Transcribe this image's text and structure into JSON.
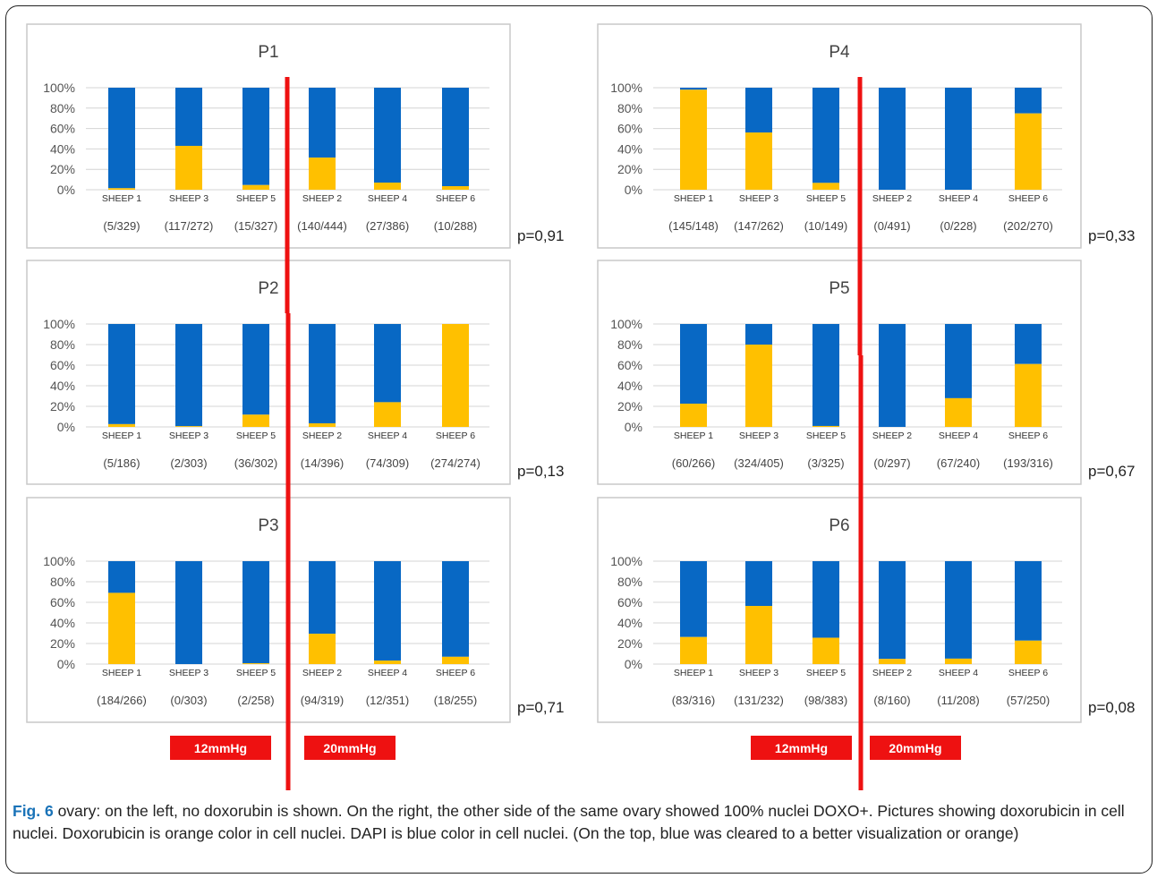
{
  "caption": {
    "label": "Fig. 6",
    "text": " ovary: on the left, no doxorubin is shown. On the right, the other side of the same ovary showed 100% nuclei DOXO+. Pictures showing doxorubicin in cell nuclei. Doxorubicin is orange color in cell nuclei. DAPI is blue color in cell nuclei. (On the top, blue was cleared to a better visualization or orange)"
  },
  "colors": {
    "dapi": "#0868c4",
    "doxo": "#ffc000",
    "divider": "#ee1111",
    "label_box": "#ee1111"
  },
  "pressure_labels": {
    "left": "12mmHg",
    "right": "20mmHg"
  },
  "y_ticks": [
    "0%",
    "20%",
    "40%",
    "60%",
    "80%",
    "100%"
  ],
  "chart_data": [
    {
      "type": "bar",
      "title": "P1",
      "categories": [
        "SHEEP 1",
        "SHEEP 3",
        "SHEEP 5",
        "SHEEP 2",
        "SHEEP 4",
        "SHEEP 6"
      ],
      "ylim": [
        0,
        100
      ],
      "series": [
        {
          "values": [
            1.5,
            43,
            4.6,
            31.5,
            7,
            3.5
          ]
        },
        {
          "values": [
            98.5,
            57,
            95.4,
            68.5,
            93,
            96.5
          ]
        }
      ],
      "counts": [
        "(5/329)",
        "(117/272)",
        "(15/327)",
        "(140/444)",
        "(27/386)",
        "(10/288)"
      ],
      "p_value": "p=0,91"
    },
    {
      "type": "bar",
      "title": "P2",
      "categories": [
        "SHEEP 1",
        "SHEEP 3",
        "SHEEP 5",
        "SHEEP 2",
        "SHEEP 4",
        "SHEEP 6"
      ],
      "ylim": [
        0,
        100
      ],
      "series": [
        {
          "values": [
            2.7,
            0.7,
            11.9,
            3.5,
            24,
            100
          ]
        },
        {
          "values": [
            97.3,
            99.3,
            88.1,
            96.5,
            76,
            0
          ]
        }
      ],
      "counts": [
        "(5/186)",
        "(2/303)",
        "(36/302)",
        "(14/396)",
        "(74/309)",
        "(274/274)"
      ],
      "p_value": "p=0,13"
    },
    {
      "type": "bar",
      "title": "P3",
      "categories": [
        "SHEEP 1",
        "SHEEP 3",
        "SHEEP 5",
        "SHEEP 2",
        "SHEEP 4",
        "SHEEP 6"
      ],
      "ylim": [
        0,
        100
      ],
      "series": [
        {
          "values": [
            69.2,
            0,
            0.8,
            29.5,
            3.4,
            7.1
          ]
        },
        {
          "values": [
            30.8,
            100,
            99.2,
            70.5,
            96.6,
            92.9
          ]
        }
      ],
      "counts": [
        "(184/266)",
        "(0/303)",
        "(2/258)",
        "(94/319)",
        "(12/351)",
        "(18/255)"
      ],
      "p_value": "p=0,71"
    },
    {
      "type": "bar",
      "title": "P4",
      "categories": [
        "SHEEP 1",
        "SHEEP 3",
        "SHEEP 5",
        "SHEEP 2",
        "SHEEP 4",
        "SHEEP 6"
      ],
      "ylim": [
        0,
        100
      ],
      "series": [
        {
          "values": [
            98,
            56.1,
            6.7,
            0,
            0,
            74.8
          ]
        },
        {
          "values": [
            2,
            43.9,
            93.3,
            100,
            100,
            25.2
          ]
        }
      ],
      "counts": [
        "(145/148)",
        "(147/262)",
        "(10/149)",
        "(0/491)",
        "(0/228)",
        "(202/270)"
      ],
      "p_value": "p=0,33"
    },
    {
      "type": "bar",
      "title": "P5",
      "categories": [
        "SHEEP 1",
        "SHEEP 3",
        "SHEEP 5",
        "SHEEP 2",
        "SHEEP 4",
        "SHEEP 6"
      ],
      "ylim": [
        0,
        100
      ],
      "series": [
        {
          "values": [
            22.6,
            80,
            0.9,
            0,
            27.9,
            61.1
          ]
        },
        {
          "values": [
            77.4,
            20,
            99.1,
            100,
            72.1,
            38.9
          ]
        }
      ],
      "counts": [
        "(60/266)",
        "(324/405)",
        "(3/325)",
        "(0/297)",
        "(67/240)",
        "(193/316)"
      ],
      "p_value": "p=0,67"
    },
    {
      "type": "bar",
      "title": "P6",
      "categories": [
        "SHEEP 1",
        "SHEEP 3",
        "SHEEP 5",
        "SHEEP 2",
        "SHEEP 4",
        "SHEEP 6"
      ],
      "ylim": [
        0,
        100
      ],
      "series": [
        {
          "values": [
            26.3,
            56.5,
            25.6,
            5,
            5.3,
            22.8
          ]
        },
        {
          "values": [
            73.7,
            43.5,
            74.4,
            95,
            94.7,
            77.2
          ]
        }
      ],
      "counts": [
        "(83/316)",
        "(131/232)",
        "(98/383)",
        "(8/160)",
        "(11/208)",
        "(57/250)"
      ],
      "p_value": "p=0,08"
    }
  ]
}
